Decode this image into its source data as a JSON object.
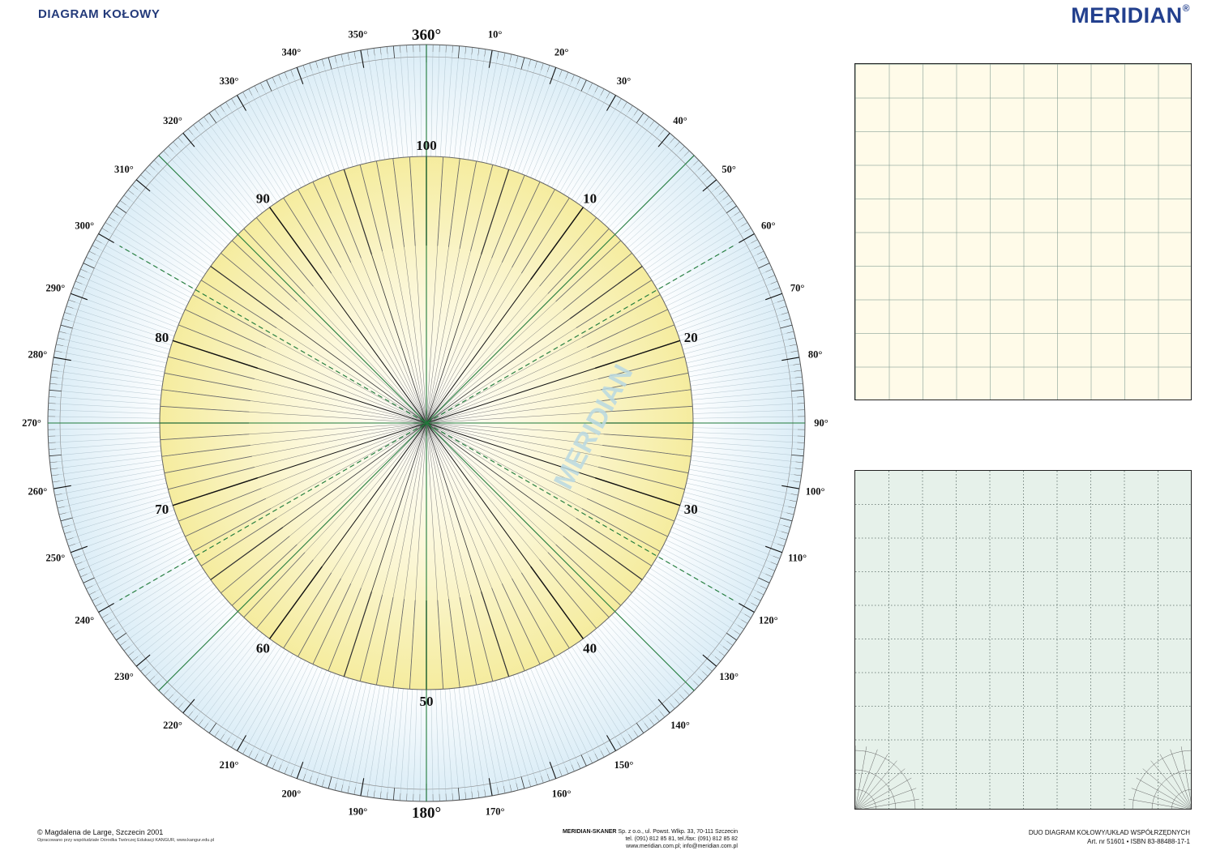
{
  "header": {
    "title": "DIAGRAM KOŁOWY",
    "brand": "MERIDIAN",
    "brand_mark": "®"
  },
  "wheel": {
    "watermark": "MERIDIAN",
    "degree_labels": [
      "360°",
      "10°",
      "20°",
      "30°",
      "40°",
      "50°",
      "60°",
      "70°",
      "80°",
      "90°",
      "100°",
      "110°",
      "120°",
      "130°",
      "140°",
      "150°",
      "160°",
      "170°",
      "180°",
      "190°",
      "200°",
      "210°",
      "220°",
      "230°",
      "240°",
      "250°",
      "260°",
      "270°",
      "280°",
      "290°",
      "300°",
      "310°",
      "320°",
      "330°",
      "340°",
      "350°"
    ],
    "percent_labels": [
      "100",
      "10",
      "20",
      "30",
      "40",
      "50",
      "60",
      "70",
      "80",
      "90"
    ],
    "outer_ring_fill": "#e3f1f8",
    "inner_disc_fill": "#f6eeaa",
    "axis_color": "#1f7a3a"
  },
  "panels": {
    "top_fill": "#fffbe9",
    "bottom_fill": "#e6f1ea"
  },
  "footer": {
    "copyright": "© Magdalena de Large, Szczecin 2001",
    "credits": "Opracowano przy współudziale Ośrodka Twórczej Edukacji KANGUR, www.kangur.edu.pl",
    "publisher_name": "MERIDIAN-SKANER",
    "publisher_address": " Sp. z o.o., ul. Powst. Wlkp. 33, 70-111 Szczecin",
    "publisher_phone": "tel. (091) 812 85 81, tel./fax: (091) 812 85 82",
    "publisher_web": "www.meridian.com.pl;  info@meridian.com.pl",
    "product_title": "DUO DIAGRAM KOŁOWY/UKŁAD WSPÓŁRZĘDNYCH",
    "product_code": "Art. nr 51601 • ISBN 83-88488-17-1"
  }
}
